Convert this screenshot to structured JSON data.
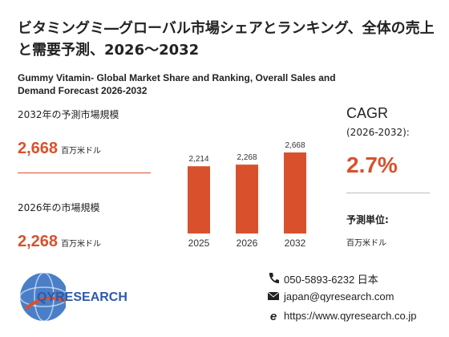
{
  "header": {
    "title": "ビタミングミ―グローバル市場シェアとランキング、全体の売上と需要予測、2026～2032",
    "subtitle": "Gummy Vitamin- Global Market Share and Ranking, Overall Sales and Demand Forecast 2026-2032"
  },
  "metrics": [
    {
      "label": "2032年の予測市場規模",
      "value": "2,668",
      "unit": "百万米ドル"
    },
    {
      "label": "2026年の市場規模",
      "value": "2,268",
      "unit": "百万米ドル"
    }
  ],
  "cagr": {
    "title": "CAGR",
    "period": "(2026-2032):",
    "value": "2.7%",
    "unit_label": "予測単位:",
    "unit": "百万米ドル"
  },
  "chart_data": {
    "type": "bar",
    "categories": [
      "2025",
      "2026",
      "2032"
    ],
    "values": [
      2214,
      2268,
      2668
    ],
    "value_labels": [
      "2,214",
      "2,268",
      "2,668"
    ],
    "color": "#d9512c"
  },
  "contact": {
    "phone": "050-5893-6232 日本",
    "email": "japan@qyresearch.com",
    "web": "https://www.qyresearch.co.jp"
  },
  "logo": {
    "text": "QYRESEARCH"
  }
}
